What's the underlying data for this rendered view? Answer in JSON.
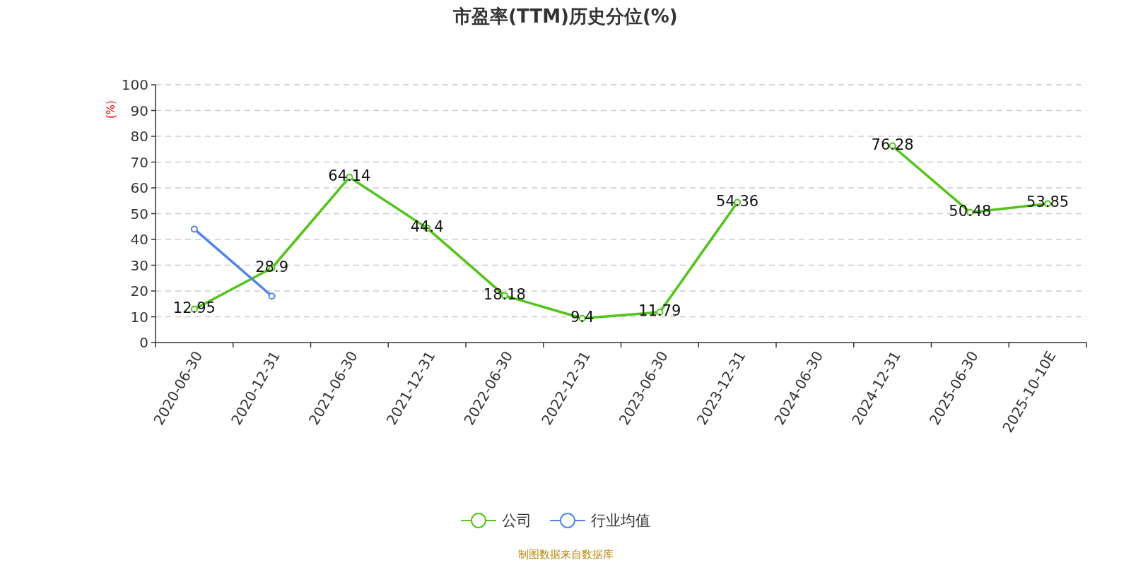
{
  "chart_data": {
    "type": "line",
    "title": "市盈率(TTM)历史分位(%)",
    "ylabel": "(%)",
    "categories": [
      "2020-06-30",
      "2020-12-31",
      "2021-06-30",
      "2021-12-31",
      "2022-06-30",
      "2022-12-31",
      "2023-06-30",
      "2023-12-31",
      "2024-06-30",
      "2024-12-31",
      "2025-06-30",
      "2025-10-10E"
    ],
    "series": [
      {
        "name": "公司",
        "color": "#52c41a",
        "values": [
          12.95,
          28.9,
          64.14,
          44.4,
          18.18,
          9.4,
          11.79,
          54.36,
          null,
          76.28,
          50.48,
          53.85
        ],
        "value_labels": [
          "12.95",
          "28.9",
          "64.14",
          "44.4",
          "18.18",
          "9.4",
          "11.79",
          "54.36",
          null,
          "76.28",
          "50.48",
          "53.85"
        ]
      },
      {
        "name": "行业均值",
        "color": "#5185e4",
        "values": [
          44,
          18,
          null,
          null,
          null,
          null,
          null,
          null,
          null,
          null,
          null,
          null
        ]
      }
    ],
    "ylim": [
      0,
      100
    ],
    "yticks": [
      0,
      10,
      20,
      30,
      40,
      50,
      60,
      70,
      80,
      90,
      100
    ],
    "grid": "y",
    "legend": "bottom",
    "marker": "circle",
    "line_style": "solid",
    "annotations": [
      "制图数据来自数据库"
    ]
  }
}
